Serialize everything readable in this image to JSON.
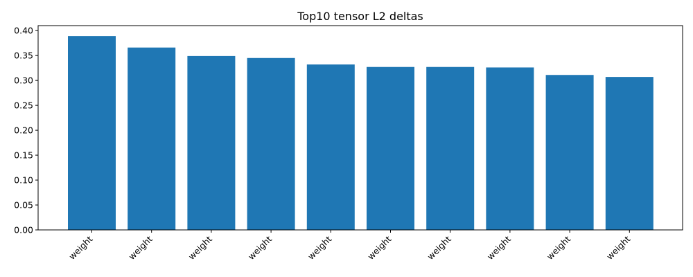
{
  "chart_data": {
    "type": "bar",
    "title": "Top10 tensor L2 deltas",
    "xlabel": "",
    "ylabel": "",
    "categories": [
      "weight",
      "weight",
      "weight",
      "weight",
      "weight",
      "weight",
      "weight",
      "weight",
      "weight",
      "weight"
    ],
    "values": [
      0.389,
      0.366,
      0.349,
      0.345,
      0.332,
      0.327,
      0.327,
      0.326,
      0.311,
      0.307
    ],
    "ylim": [
      0,
      0.41
    ],
    "yticks": [
      "0.00",
      "0.05",
      "0.10",
      "0.15",
      "0.20",
      "0.25",
      "0.30",
      "0.35",
      "0.40"
    ],
    "bar_color": "#1f77b4",
    "grid": false,
    "legend": "none"
  }
}
